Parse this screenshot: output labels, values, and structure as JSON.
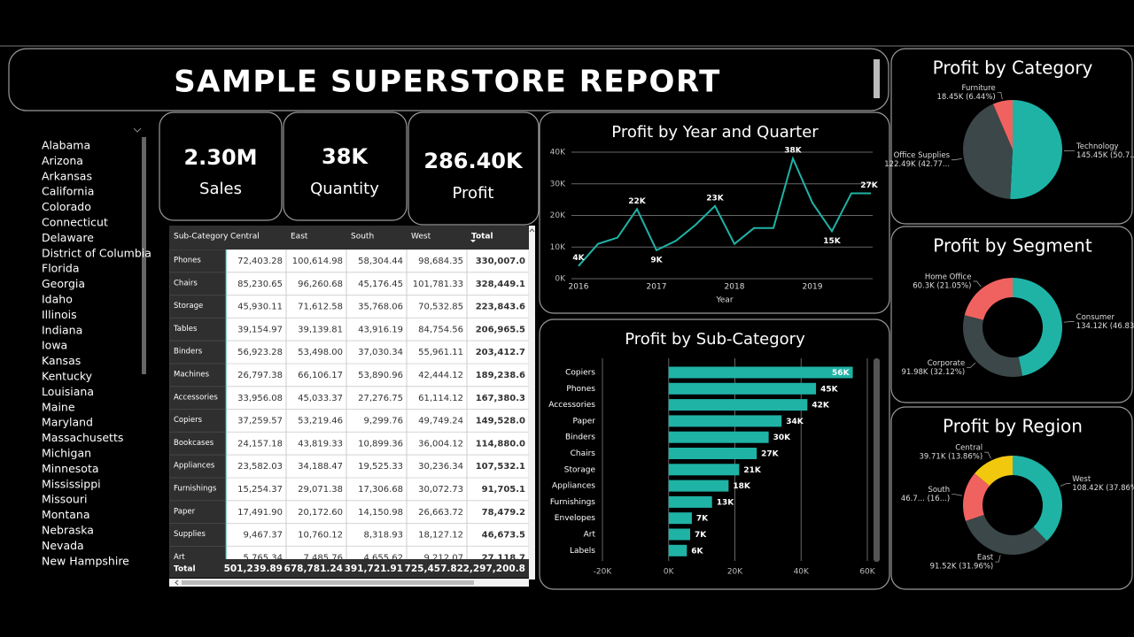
{
  "header": {
    "title": "SAMPLE SUPERSTORE REPORT"
  },
  "slicer": {
    "items": [
      "Alabama",
      "Arizona",
      "Arkansas",
      "California",
      "Colorado",
      "Connecticut",
      "Delaware",
      "District of Columbia",
      "Florida",
      "Georgia",
      "Idaho",
      "Illinois",
      "Indiana",
      "Iowa",
      "Kansas",
      "Kentucky",
      "Louisiana",
      "Maine",
      "Maryland",
      "Massachusetts",
      "Michigan",
      "Minnesota",
      "Mississippi",
      "Missouri",
      "Montana",
      "Nebraska",
      "Nevada",
      "New Hampshire"
    ]
  },
  "kpis": [
    {
      "value": "2.30M",
      "label": "Sales"
    },
    {
      "value": "38K",
      "label": "Quantity"
    },
    {
      "value": "286.40K",
      "label": "Profit"
    }
  ],
  "table": {
    "columns": [
      "Sub-Category",
      "Central",
      "East",
      "South",
      "West",
      "Total"
    ],
    "rows": [
      [
        "Phones",
        "72,403.28",
        "100,614.98",
        "58,304.44",
        "98,684.35",
        "330,007.0"
      ],
      [
        "Chairs",
        "85,230.65",
        "96,260.68",
        "45,176.45",
        "101,781.33",
        "328,449.1"
      ],
      [
        "Storage",
        "45,930.11",
        "71,612.58",
        "35,768.06",
        "70,532.85",
        "223,843.6"
      ],
      [
        "Tables",
        "39,154.97",
        "39,139.81",
        "43,916.19",
        "84,754.56",
        "206,965.5"
      ],
      [
        "Binders",
        "56,923.28",
        "53,498.00",
        "37,030.34",
        "55,961.11",
        "203,412.7"
      ],
      [
        "Machines",
        "26,797.38",
        "66,106.17",
        "53,890.96",
        "42,444.12",
        "189,238.6"
      ],
      [
        "Accessories",
        "33,956.08",
        "45,033.37",
        "27,276.75",
        "61,114.12",
        "167,380.3"
      ],
      [
        "Copiers",
        "37,259.57",
        "53,219.46",
        "9,299.76",
        "49,749.24",
        "149,528.0"
      ],
      [
        "Bookcases",
        "24,157.18",
        "43,819.33",
        "10,899.36",
        "36,004.12",
        "114,880.0"
      ],
      [
        "Appliances",
        "23,582.03",
        "34,188.47",
        "19,525.33",
        "30,236.34",
        "107,532.1"
      ],
      [
        "Furnishings",
        "15,254.37",
        "29,071.38",
        "17,306.68",
        "30,072.73",
        "91,705.1"
      ],
      [
        "Paper",
        "17,491.90",
        "20,172.60",
        "14,150.98",
        "26,663.72",
        "78,479.2"
      ],
      [
        "Supplies",
        "9,467.37",
        "10,760.12",
        "8,318.93",
        "18,127.12",
        "46,673.5"
      ],
      [
        "Art",
        "5,765.34",
        "7,485.76",
        "4,655.62",
        "9,212.07",
        "27,118.7"
      ]
    ],
    "total": [
      "Total",
      "501,239.89",
      "678,781.24",
      "391,721.91",
      "725,457.82",
      "2,297,200.8"
    ]
  },
  "chart_data": [
    {
      "type": "line",
      "title": "Profit by Year and Quarter",
      "x_label": "Year",
      "color": "#1fb3a6",
      "categories": [
        "2016",
        null,
        null,
        null,
        "2017",
        null,
        null,
        null,
        "2018",
        null,
        null,
        null,
        "2019",
        null,
        null,
        null
      ],
      "values": [
        4000,
        11000,
        13000,
        22000,
        9000,
        12000,
        17000,
        23000,
        11000,
        16000,
        16000,
        38000,
        24000,
        15000,
        27000,
        27000
      ],
      "value_labels": [
        "4K",
        null,
        null,
        "22K",
        "9K",
        null,
        null,
        "23K",
        null,
        null,
        null,
        "38K",
        null,
        "15K",
        null,
        "27K"
      ],
      "ylim": [
        0,
        40000
      ],
      "yticks": [
        {
          "value": 0,
          "label": "0K"
        },
        {
          "value": 10000,
          "label": "10K"
        },
        {
          "value": 20000,
          "label": "20K"
        },
        {
          "value": 30000,
          "label": "30K"
        },
        {
          "value": 40000,
          "label": "40K"
        }
      ],
      "grid": true
    },
    {
      "type": "hbar",
      "title": "Profit by Sub-Category",
      "color": "#1fb3a6",
      "categories": [
        "Copiers",
        "Phones",
        "Accessories",
        "Paper",
        "Binders",
        "Chairs",
        "Storage",
        "Appliances",
        "Furnishings",
        "Envelopes",
        "Art",
        "Labels"
      ],
      "values": [
        55600,
        44500,
        41900,
        34100,
        30200,
        26600,
        21300,
        18100,
        13100,
        7000,
        6500,
        5500
      ],
      "value_labels": [
        "56K",
        "45K",
        "42K",
        "34K",
        "30K",
        "27K",
        "21K",
        "18K",
        "13K",
        "7K",
        "7K",
        "6K"
      ],
      "xlim": [
        -20000,
        60000
      ],
      "xticks": [
        {
          "value": -20000,
          "label": "-20K"
        },
        {
          "value": 0,
          "label": "0K"
        },
        {
          "value": 20000,
          "label": "20K"
        },
        {
          "value": 40000,
          "label": "40K"
        },
        {
          "value": 60000,
          "label": "60K"
        }
      ],
      "grid": true
    },
    {
      "type": "pie",
      "title": "Profit by Category",
      "categories": [
        "Technology",
        "Office Supplies",
        "Furniture"
      ],
      "values": [
        145450,
        122490,
        18450
      ],
      "value_labels": [
        "145.45K (50.7...",
        "122.49K (42.77...",
        "18.45K (6.44%)"
      ],
      "colors": [
        "#1fb3a6",
        "#3b4749",
        "#f0625f"
      ]
    },
    {
      "type": "donut",
      "title": "Profit by Segment",
      "categories": [
        "Consumer",
        "Corporate",
        "Home Office"
      ],
      "values": [
        134120,
        91980,
        60300
      ],
      "value_labels": [
        "134.12K (46.83...",
        "91.98K (32.12%)",
        "60.3K (21.05%)"
      ],
      "colors": [
        "#1fb3a6",
        "#3b4749",
        "#f0625f"
      ]
    },
    {
      "type": "donut",
      "title": "Profit by Region",
      "categories": [
        "West",
        "East",
        "South",
        "Central"
      ],
      "values": [
        108420,
        91520,
        46750,
        39710
      ],
      "value_labels": [
        "108.42K (37.86%)",
        "91.52K (31.96%)",
        "46.7... (16...)",
        "39.71K (13.86%)"
      ],
      "colors": [
        "#1fb3a6",
        "#3b4749",
        "#f0625f",
        "#f2c80f"
      ]
    }
  ]
}
